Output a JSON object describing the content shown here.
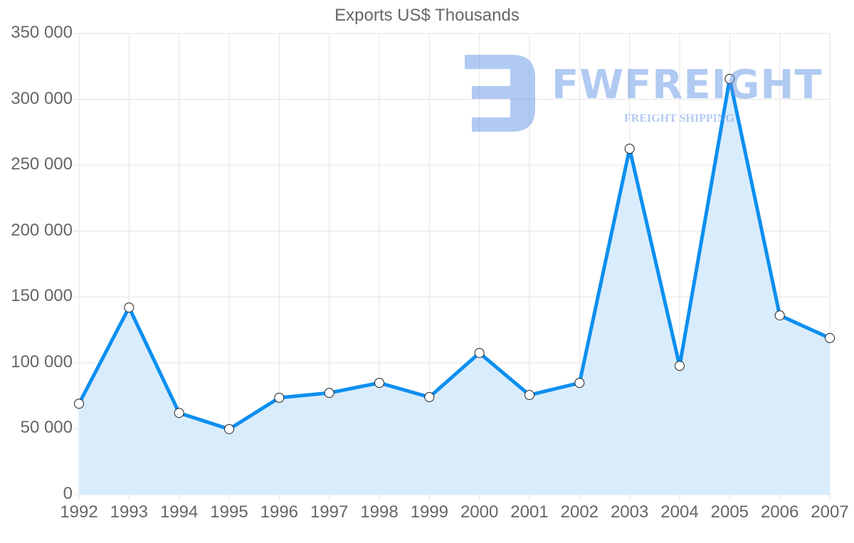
{
  "chart_data": {
    "type": "line",
    "title": "Exports US$ Thousands",
    "xlabel": "",
    "ylabel": "",
    "categories": [
      "1992",
      "1993",
      "1994",
      "1995",
      "1996",
      "1997",
      "1998",
      "1999",
      "2000",
      "2001",
      "2002",
      "2003",
      "2004",
      "2005",
      "2006",
      "2007"
    ],
    "series": [
      {
        "name": "Exports US$ Thousands",
        "values": [
          69000,
          142000,
          62000,
          49700,
          73500,
          77200,
          84800,
          74000,
          107500,
          75600,
          84800,
          262500,
          97700,
          315500,
          136000,
          118800
        ],
        "color": "#0b8ff0",
        "fill": "#d9ecfc"
      }
    ],
    "ylim": [
      0,
      350000
    ],
    "yticks": [
      0,
      50000,
      100000,
      150000,
      200000,
      250000,
      300000,
      350000
    ],
    "ytick_labels": [
      "0",
      "50 000",
      "100 000",
      "150 000",
      "200 000",
      "250 000",
      "300 000",
      "350 000"
    ],
    "grid": true,
    "legend": "none",
    "filled_area": true
  },
  "watermark": {
    "brand": "FWFREIGHT",
    "tagline": "FREIGHT SHIPPING"
  }
}
